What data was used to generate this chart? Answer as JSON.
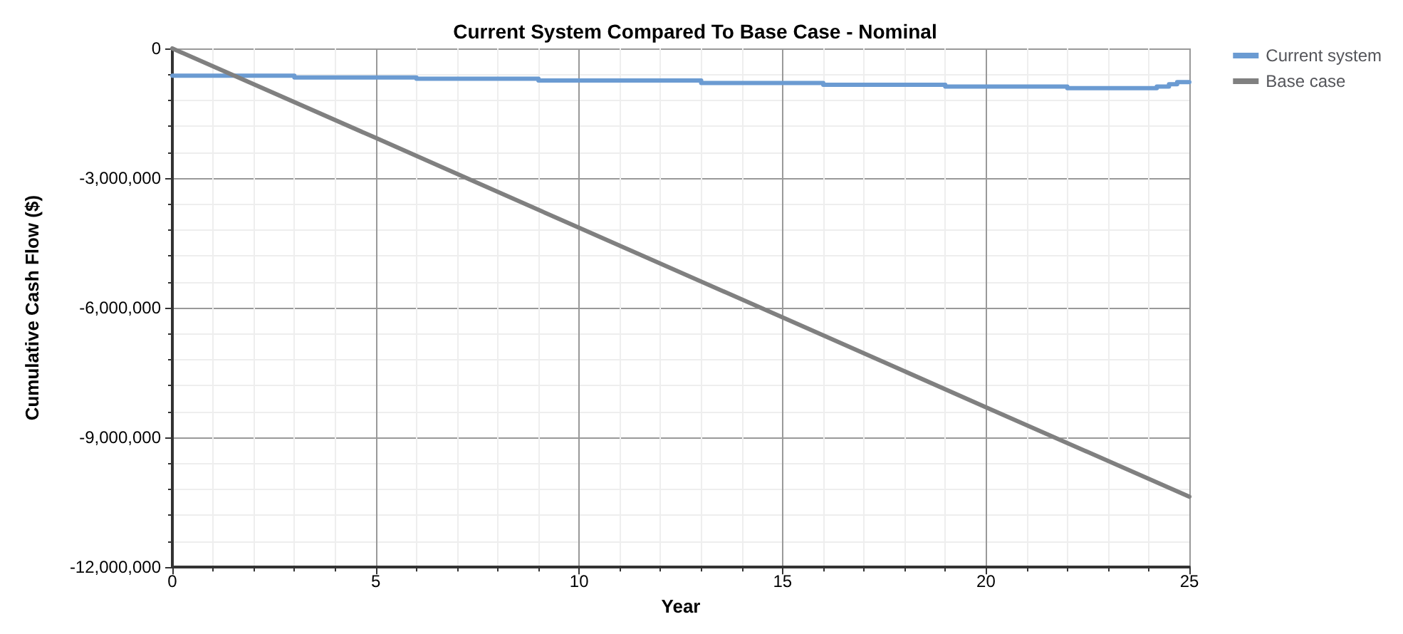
{
  "chart_data": {
    "type": "line",
    "title": "Current System Compared To Base Case - Nominal",
    "xlabel": "Year",
    "ylabel": "Cumulative Cash Flow ($)",
    "xlim": [
      0,
      25
    ],
    "xticks": [
      0,
      5,
      10,
      15,
      20,
      25
    ],
    "ylim": [
      -12000000,
      0
    ],
    "yticks": [
      {
        "value": -12000000,
        "label": "-12,000,000"
      },
      {
        "value": -9000000,
        "label": "-9,000,000"
      },
      {
        "value": -6000000,
        "label": "-6,000,000"
      },
      {
        "value": -3000000,
        "label": "-3,000,000"
      },
      {
        "value": 0,
        "label": "0"
      }
    ],
    "grid": true,
    "legend": "top right",
    "marker": "none",
    "series": [
      {
        "name": "Current system",
        "type": "step",
        "color": "#6b9bd2",
        "x": [
          0,
          3,
          6,
          9,
          13,
          16,
          19,
          22,
          24.2,
          24.5,
          24.7,
          25
        ],
        "values": [
          -630000,
          -670000,
          -700000,
          -740000,
          -800000,
          -840000,
          -880000,
          -920000,
          -880000,
          -830000,
          -780000,
          -760000
        ]
      },
      {
        "name": "Base case",
        "color": "#808080",
        "x": [
          0,
          5,
          10,
          15,
          20,
          25
        ],
        "values": [
          0,
          -2070000,
          -4150000,
          -6220000,
          -8300000,
          -10370000
        ]
      }
    ]
  }
}
